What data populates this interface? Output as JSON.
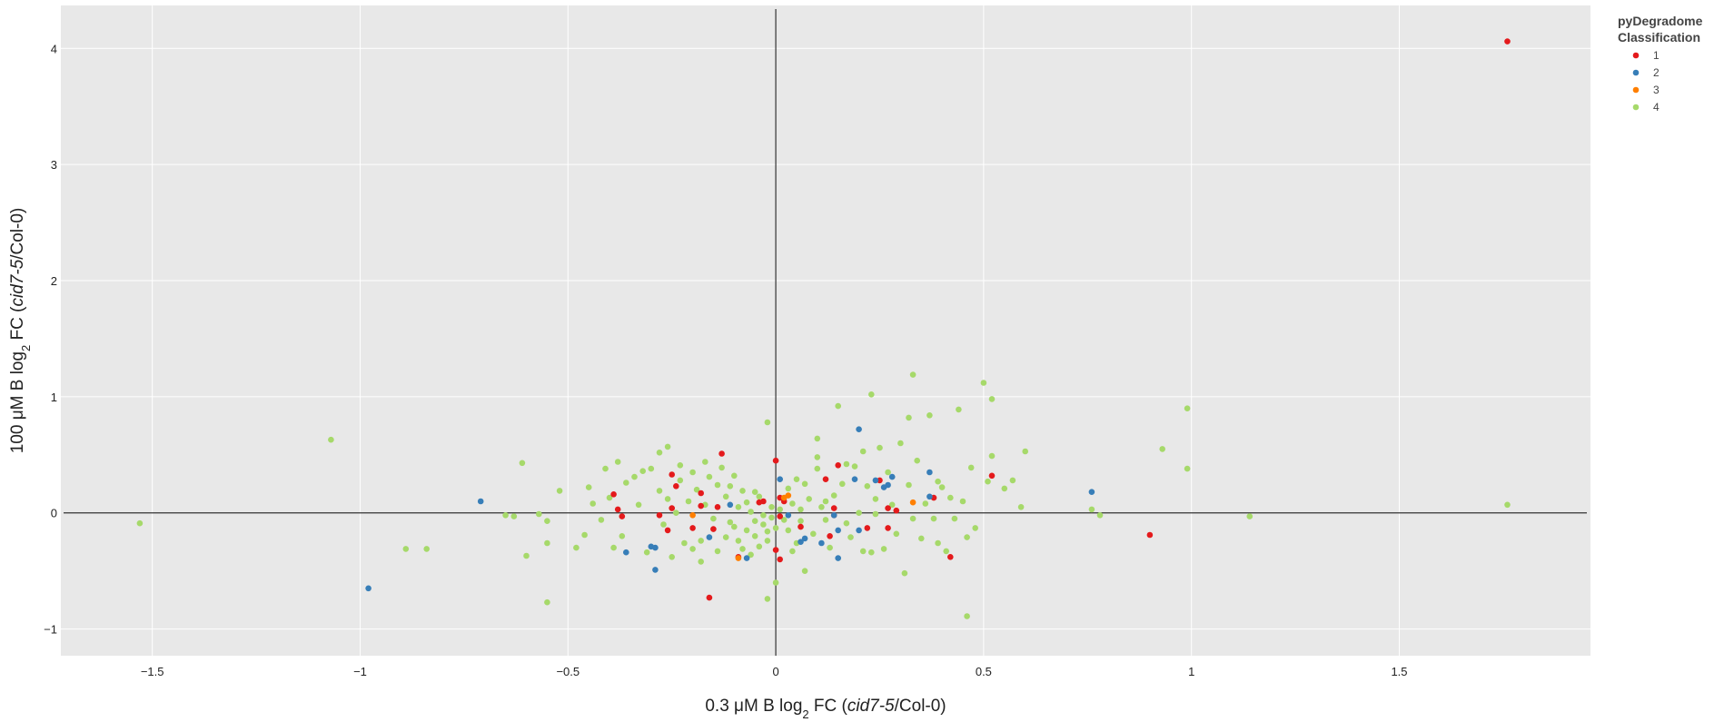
{
  "chart_data": {
    "type": "scatter",
    "title": "",
    "xlabel_parts": [
      "0.3 μM B log",
      "2",
      " FC (",
      "cid7-5",
      "/Col-0)"
    ],
    "ylabel_parts": [
      "100 μM B log",
      "2",
      " FC (",
      "cid7-5",
      "/Col-0)"
    ],
    "xlim": [
      -1.72,
      1.96
    ],
    "ylim": [
      -1.23,
      4.37
    ],
    "x_ticks": [
      -1.5,
      -1,
      -0.5,
      0,
      0.5,
      1,
      1.5
    ],
    "x_tick_labels": [
      "−1.5",
      "−1",
      "−0.5",
      "0",
      "0.5",
      "1",
      "1.5"
    ],
    "y_ticks": [
      -1,
      0,
      1,
      2,
      3,
      4
    ],
    "y_tick_labels": [
      "−1",
      "0",
      "1",
      "2",
      "3",
      "4"
    ],
    "grid": true,
    "zero_lines": true,
    "background": "#e8e8e8",
    "legend": {
      "title_lines": [
        "pyDegradome",
        "Classification"
      ],
      "position": "top-right",
      "entries": [
        "1",
        "2",
        "3",
        "4"
      ]
    },
    "series": [
      {
        "name": "1",
        "color": "#e41a1c",
        "points": [
          [
            1.76,
            4.06
          ],
          [
            -0.13,
            0.51
          ],
          [
            0.0,
            0.45
          ],
          [
            -0.25,
            0.33
          ],
          [
            -0.24,
            0.23
          ],
          [
            -0.39,
            0.16
          ],
          [
            -0.38,
            0.03
          ],
          [
            -0.37,
            -0.03
          ],
          [
            -0.28,
            -0.02
          ],
          [
            -0.25,
            0.04
          ],
          [
            -0.18,
            0.17
          ],
          [
            -0.18,
            0.06
          ],
          [
            -0.14,
            0.05
          ],
          [
            -0.2,
            -0.13
          ],
          [
            -0.26,
            -0.15
          ],
          [
            -0.15,
            -0.14
          ],
          [
            -0.09,
            -0.38
          ],
          [
            -0.16,
            -0.73
          ],
          [
            -0.04,
            0.09
          ],
          [
            -0.03,
            0.1
          ],
          [
            0.01,
            0.13
          ],
          [
            0.02,
            0.1
          ],
          [
            0.0,
            -0.32
          ],
          [
            0.01,
            -0.4
          ],
          [
            0.01,
            -0.03
          ],
          [
            0.12,
            0.29
          ],
          [
            0.15,
            0.41
          ],
          [
            0.14,
            0.04
          ],
          [
            0.14,
            -0.02
          ],
          [
            0.13,
            -0.2
          ],
          [
            0.22,
            -0.13
          ],
          [
            0.25,
            0.28
          ],
          [
            0.27,
            0.04
          ],
          [
            0.27,
            -0.13
          ],
          [
            0.29,
            0.02
          ],
          [
            0.38,
            0.13
          ],
          [
            0.42,
            -0.38
          ],
          [
            0.52,
            0.32
          ],
          [
            0.9,
            -0.19
          ],
          [
            0.06,
            -0.12
          ]
        ]
      },
      {
        "name": "2",
        "color": "#377eb8",
        "points": [
          [
            -0.98,
            -0.65
          ],
          [
            -0.71,
            0.1
          ],
          [
            -0.36,
            -0.34
          ],
          [
            -0.3,
            -0.29
          ],
          [
            -0.29,
            -0.3
          ],
          [
            -0.29,
            -0.49
          ],
          [
            -0.16,
            -0.21
          ],
          [
            -0.07,
            -0.39
          ],
          [
            0.01,
            0.29
          ],
          [
            0.03,
            -0.02
          ],
          [
            0.07,
            -0.22
          ],
          [
            0.06,
            -0.25
          ],
          [
            0.11,
            -0.26
          ],
          [
            0.14,
            -0.02
          ],
          [
            0.15,
            -0.39
          ],
          [
            0.15,
            -0.15
          ],
          [
            0.19,
            0.29
          ],
          [
            0.2,
            -0.15
          ],
          [
            0.2,
            0.72
          ],
          [
            0.24,
            0.28
          ],
          [
            0.26,
            0.22
          ],
          [
            0.27,
            0.24
          ],
          [
            0.28,
            0.31
          ],
          [
            0.37,
            0.14
          ],
          [
            0.37,
            0.35
          ],
          [
            0.76,
            0.18
          ],
          [
            -0.11,
            0.07
          ]
        ]
      },
      {
        "name": "3",
        "color": "#ff7f00",
        "points": [
          [
            -0.2,
            -0.02
          ],
          [
            0.03,
            0.15
          ],
          [
            0.02,
            0.13
          ],
          [
            0.33,
            0.09
          ],
          [
            -0.09,
            -0.39
          ]
        ]
      },
      {
        "name": "4",
        "color": "#a6d96a",
        "points": [
          [
            -1.53,
            -0.09
          ],
          [
            -1.07,
            0.63
          ],
          [
            -0.89,
            -0.31
          ],
          [
            -0.84,
            -0.31
          ],
          [
            -0.65,
            -0.02
          ],
          [
            -0.61,
            0.43
          ],
          [
            -0.6,
            -0.37
          ],
          [
            -0.57,
            -0.01
          ],
          [
            -0.55,
            -0.07
          ],
          [
            -0.55,
            -0.26
          ],
          [
            -0.55,
            -0.77
          ],
          [
            -0.52,
            0.19
          ],
          [
            -0.48,
            -0.3
          ],
          [
            -0.46,
            -0.19
          ],
          [
            -0.45,
            0.22
          ],
          [
            -0.44,
            0.08
          ],
          [
            -0.42,
            -0.06
          ],
          [
            -0.41,
            0.38
          ],
          [
            -0.4,
            0.13
          ],
          [
            -0.39,
            -0.3
          ],
          [
            -0.38,
            0.44
          ],
          [
            -0.37,
            -0.2
          ],
          [
            -0.36,
            0.26
          ],
          [
            -0.34,
            0.31
          ],
          [
            -0.33,
            0.07
          ],
          [
            -0.32,
            0.36
          ],
          [
            -0.31,
            -0.34
          ],
          [
            -0.3,
            0.38
          ],
          [
            -0.28,
            0.52
          ],
          [
            -0.28,
            0.19
          ],
          [
            -0.27,
            -0.1
          ],
          [
            -0.26,
            0.57
          ],
          [
            -0.26,
            0.12
          ],
          [
            -0.25,
            -0.38
          ],
          [
            -0.24,
            0.0
          ],
          [
            -0.23,
            0.41
          ],
          [
            -0.23,
            0.28
          ],
          [
            -0.22,
            -0.26
          ],
          [
            -0.21,
            0.1
          ],
          [
            -0.2,
            0.35
          ],
          [
            -0.2,
            -0.31
          ],
          [
            -0.19,
            0.2
          ],
          [
            -0.18,
            -0.24
          ],
          [
            -0.18,
            -0.42
          ],
          [
            -0.17,
            0.44
          ],
          [
            -0.17,
            0.07
          ],
          [
            -0.16,
            0.31
          ],
          [
            -0.15,
            -0.05
          ],
          [
            -0.14,
            0.24
          ],
          [
            -0.14,
            -0.33
          ],
          [
            -0.13,
            0.39
          ],
          [
            -0.12,
            0.14
          ],
          [
            -0.12,
            -0.21
          ],
          [
            -0.11,
            0.23
          ],
          [
            -0.11,
            -0.08
          ],
          [
            -0.1,
            0.32
          ],
          [
            -0.1,
            -0.12
          ],
          [
            -0.09,
            -0.24
          ],
          [
            -0.09,
            0.05
          ],
          [
            -0.08,
            0.19
          ],
          [
            -0.08,
            -0.31
          ],
          [
            -0.07,
            0.09
          ],
          [
            -0.07,
            -0.15
          ],
          [
            -0.06,
            -0.36
          ],
          [
            -0.06,
            0.01
          ],
          [
            -0.05,
            -0.07
          ],
          [
            -0.05,
            -0.2
          ],
          [
            -0.04,
            0.14
          ],
          [
            -0.04,
            -0.29
          ],
          [
            -0.03,
            -0.02
          ],
          [
            -0.03,
            -0.1
          ],
          [
            -0.02,
            0.78
          ],
          [
            -0.02,
            -0.16
          ],
          [
            -0.02,
            -0.24
          ],
          [
            -0.01,
            0.05
          ],
          [
            -0.01,
            -0.04
          ],
          [
            0.0,
            -0.13
          ],
          [
            0.0,
            -0.6
          ],
          [
            -0.02,
            -0.74
          ],
          [
            0.01,
            0.03
          ],
          [
            0.02,
            -0.06
          ],
          [
            0.03,
            -0.15
          ],
          [
            0.03,
            0.21
          ],
          [
            0.04,
            0.08
          ],
          [
            0.05,
            0.29
          ],
          [
            0.05,
            -0.26
          ],
          [
            0.06,
            0.03
          ],
          [
            0.06,
            -0.07
          ],
          [
            0.07,
            0.25
          ],
          [
            0.07,
            -0.5
          ],
          [
            0.08,
            0.12
          ],
          [
            0.09,
            -0.18
          ],
          [
            0.1,
            0.48
          ],
          [
            0.1,
            0.38
          ],
          [
            0.1,
            0.64
          ],
          [
            0.11,
            0.05
          ],
          [
            0.12,
            -0.06
          ],
          [
            0.12,
            0.1
          ],
          [
            0.13,
            -0.3
          ],
          [
            0.14,
            0.15
          ],
          [
            0.15,
            0.92
          ],
          [
            0.16,
            0.25
          ],
          [
            0.17,
            -0.09
          ],
          [
            0.18,
            -0.21
          ],
          [
            0.19,
            0.4
          ],
          [
            0.2,
            0.0
          ],
          [
            0.21,
            0.53
          ],
          [
            0.21,
            -0.33
          ],
          [
            0.22,
            0.23
          ],
          [
            0.23,
            1.02
          ],
          [
            0.23,
            -0.34
          ],
          [
            0.24,
            0.12
          ],
          [
            0.25,
            0.56
          ],
          [
            0.26,
            -0.31
          ],
          [
            0.27,
            0.35
          ],
          [
            0.28,
            0.07
          ],
          [
            0.29,
            -0.18
          ],
          [
            0.3,
            0.6
          ],
          [
            0.31,
            -0.52
          ],
          [
            0.32,
            0.82
          ],
          [
            0.32,
            0.24
          ],
          [
            0.33,
            -0.05
          ],
          [
            0.33,
            1.19
          ],
          [
            0.34,
            0.45
          ],
          [
            0.35,
            -0.22
          ],
          [
            0.36,
            0.08
          ],
          [
            0.37,
            0.84
          ],
          [
            0.38,
            -0.05
          ],
          [
            0.39,
            0.27
          ],
          [
            0.39,
            -0.26
          ],
          [
            0.4,
            0.22
          ],
          [
            0.41,
            -0.33
          ],
          [
            0.42,
            0.13
          ],
          [
            0.43,
            -0.05
          ],
          [
            0.44,
            0.89
          ],
          [
            0.45,
            0.1
          ],
          [
            0.46,
            -0.89
          ],
          [
            0.46,
            -0.21
          ],
          [
            0.47,
            0.39
          ],
          [
            0.48,
            -0.13
          ],
          [
            0.5,
            1.12
          ],
          [
            0.51,
            0.27
          ],
          [
            0.52,
            0.98
          ],
          [
            0.52,
            0.49
          ],
          [
            0.55,
            0.21
          ],
          [
            0.57,
            0.28
          ],
          [
            0.59,
            0.05
          ],
          [
            0.6,
            0.53
          ],
          [
            0.76,
            0.03
          ],
          [
            0.78,
            -0.02
          ],
          [
            0.93,
            0.55
          ],
          [
            0.99,
            0.9
          ],
          [
            0.99,
            0.38
          ],
          [
            1.14,
            -0.03
          ],
          [
            1.76,
            0.07
          ],
          [
            -0.63,
            -0.03
          ],
          [
            0.17,
            0.42
          ],
          [
            0.04,
            -0.33
          ],
          [
            -0.05,
            0.18
          ],
          [
            0.24,
            -0.01
          ]
        ]
      }
    ]
  }
}
